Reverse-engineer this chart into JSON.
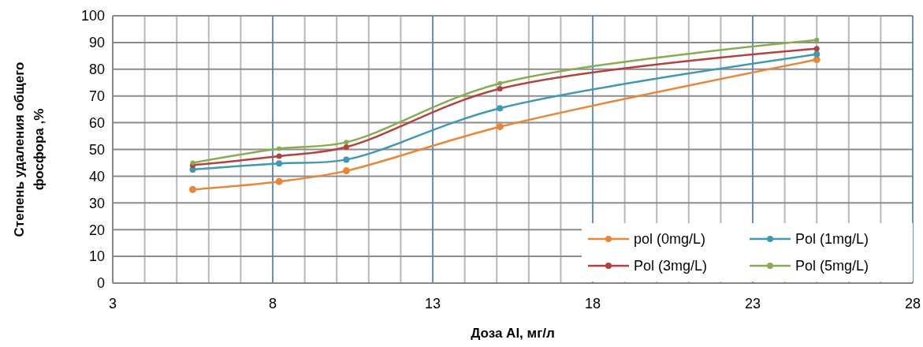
{
  "chart_data": {
    "type": "line",
    "xlabel": "Доза Al, мг/л",
    "ylabel": "Степень удаления общего фосфора ,%",
    "x": [
      5.5,
      8.2,
      10.3,
      15.1,
      25
    ],
    "series": [
      {
        "name": "pol (0mg/L)",
        "color": "#e8863a",
        "values": [
          35,
          38,
          42,
          58.5,
          83.6
        ]
      },
      {
        "name": "Pol (1mg/L)",
        "color": "#4198af",
        "values": [
          42.5,
          44.8,
          46.2,
          65.4,
          85.6
        ]
      },
      {
        "name": "Pol (3mg/L)",
        "color": "#b2423f",
        "values": [
          44.1,
          47.5,
          50.9,
          72.7,
          87.7
        ]
      },
      {
        "name": "Pol (5mg/L)",
        "color": "#8aab4f",
        "values": [
          45,
          50.3,
          52.7,
          74.7,
          90.9
        ]
      }
    ],
    "xlim": [
      3,
      28
    ],
    "xticks": [
      3,
      8,
      13,
      18,
      23,
      28
    ],
    "ylim": [
      0,
      100
    ],
    "yticks": [
      0,
      10,
      20,
      30,
      40,
      50,
      60,
      70,
      80,
      90,
      100
    ],
    "grid": true,
    "legend": "bottom right",
    "marker": "circle",
    "line_style": "solid"
  }
}
